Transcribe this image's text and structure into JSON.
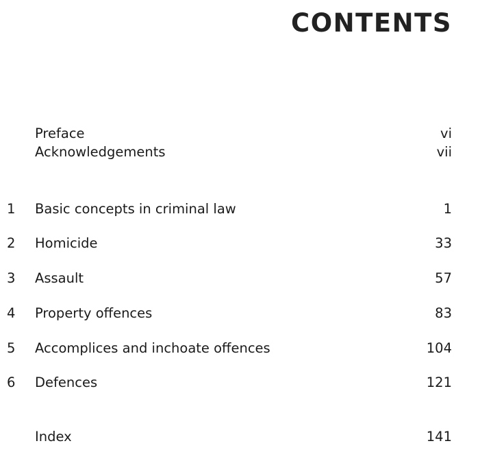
{
  "title": "CONTENTS",
  "front_matter": [
    {
      "label": "Preface",
      "page": "vi"
    },
    {
      "label": "Acknowledgements",
      "page": "vii"
    }
  ],
  "chapters": [
    {
      "number": "1",
      "label": "Basic concepts in criminal law",
      "page": "1"
    },
    {
      "number": "2",
      "label": "Homicide",
      "page": "33"
    },
    {
      "number": "3",
      "label": "Assault",
      "page": "57"
    },
    {
      "number": "4",
      "label": "Property offences",
      "page": "83"
    },
    {
      "number": "5",
      "label": "Accomplices and inchoate offences",
      "page": "104"
    },
    {
      "number": "6",
      "label": "Defences",
      "page": "121"
    }
  ],
  "back_matter": [
    {
      "label": "Index",
      "page": "141"
    }
  ]
}
